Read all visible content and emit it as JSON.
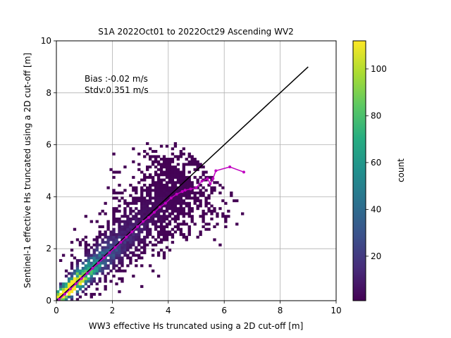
{
  "chart_data": {
    "type": "heatmap",
    "title": "S1A 2022Oct01 to 2022Oct29 Ascending WV2",
    "xlabel": "WW3 effective Hs truncated using a 2D cut-off [m]",
    "ylabel": "Sentinel-1 effective Hs truncated using a 2D cut-off [m]",
    "xlim": [
      0,
      10
    ],
    "ylim": [
      0,
      10
    ],
    "xticks": [
      "0",
      "2",
      "4",
      "6",
      "8",
      "10"
    ],
    "yticks": [
      "0",
      "2",
      "4",
      "6",
      "8",
      "10"
    ],
    "grid": true,
    "annotations": [
      "Bias :-0.02 m/s",
      "Stdv:0.351 m/s"
    ],
    "colorbar": {
      "label": "count",
      "colormap": "viridis",
      "range": [
        1,
        112
      ],
      "ticks": [
        "20",
        "40",
        "60",
        "80",
        "100"
      ]
    },
    "one_to_one_line": {
      "x": [
        0,
        9
      ],
      "y": [
        0,
        9
      ],
      "color": "#000000"
    },
    "binned_mean": {
      "color": "#c000c0",
      "points": [
        [
          0.1,
          0.05
        ],
        [
          0.3,
          0.25
        ],
        [
          0.5,
          0.45
        ],
        [
          0.7,
          0.65
        ],
        [
          0.9,
          0.85
        ],
        [
          1.1,
          1.05
        ],
        [
          1.3,
          1.25
        ],
        [
          1.5,
          1.45
        ],
        [
          1.7,
          1.65
        ],
        [
          1.9,
          1.85
        ],
        [
          2.1,
          2.05
        ],
        [
          2.3,
          2.25
        ],
        [
          2.5,
          2.45
        ],
        [
          2.7,
          2.65
        ],
        [
          2.9,
          2.85
        ],
        [
          3.1,
          3.05
        ],
        [
          3.3,
          3.2
        ],
        [
          3.5,
          3.4
        ],
        [
          3.7,
          3.6
        ],
        [
          3.9,
          3.75
        ],
        [
          4.1,
          3.95
        ],
        [
          4.3,
          4.1
        ],
        [
          4.5,
          4.2
        ],
        [
          4.6,
          4.25
        ],
        [
          4.8,
          4.3
        ],
        [
          5.0,
          4.35
        ],
        [
          5.2,
          4.6
        ],
        [
          5.4,
          4.7
        ],
        [
          5.5,
          4.5
        ],
        [
          5.6,
          4.7
        ],
        [
          5.7,
          5.0
        ],
        [
          6.2,
          5.15
        ],
        [
          6.7,
          4.95
        ]
      ]
    }
  }
}
